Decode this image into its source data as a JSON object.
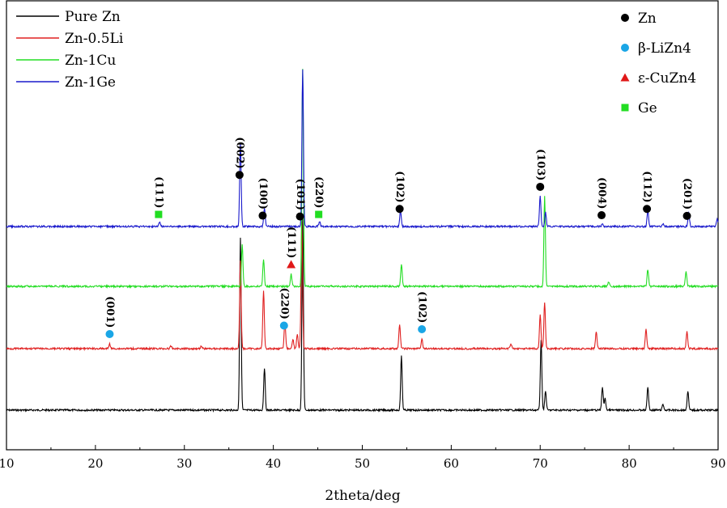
{
  "chart_data": {
    "type": "line",
    "title": "",
    "xlabel": "2theta/deg",
    "ylabel": "",
    "xlim": [
      10,
      90
    ],
    "xticks": [
      10,
      20,
      30,
      40,
      50,
      60,
      70,
      80,
      90
    ],
    "grid": false,
    "legend_position": "top-left",
    "series": [
      {
        "name": "Pure Zn",
        "color": "#000000",
        "peaks": [
          {
            "x": 36.3,
            "h": 0.9
          },
          {
            "x": 39.0,
            "h": 0.22
          },
          {
            "x": 43.3,
            "h": 1.0
          },
          {
            "x": 54.4,
            "h": 0.28
          },
          {
            "x": 70.1,
            "h": 0.36
          },
          {
            "x": 70.6,
            "h": 0.1
          },
          {
            "x": 77.0,
            "h": 0.12
          },
          {
            "x": 77.3,
            "h": 0.06
          },
          {
            "x": 82.1,
            "h": 0.12
          },
          {
            "x": 83.8,
            "h": 0.03
          },
          {
            "x": 86.6,
            "h": 0.1
          }
        ]
      },
      {
        "name": "Zn-0.5Li",
        "color": "#e02020",
        "peaks": [
          {
            "x": 21.6,
            "h": 0.02
          },
          {
            "x": 28.5,
            "h": 0.01
          },
          {
            "x": 31.9,
            "h": 0.01
          },
          {
            "x": 36.3,
            "h": 0.36
          },
          {
            "x": 38.9,
            "h": 0.24
          },
          {
            "x": 41.3,
            "h": 0.11
          },
          {
            "x": 42.2,
            "h": 0.04
          },
          {
            "x": 42.7,
            "h": 0.06
          },
          {
            "x": 43.2,
            "h": 0.52
          },
          {
            "x": 54.2,
            "h": 0.1
          },
          {
            "x": 56.7,
            "h": 0.04
          },
          {
            "x": 66.7,
            "h": 0.02
          },
          {
            "x": 70.0,
            "h": 0.14
          },
          {
            "x": 70.5,
            "h": 0.19
          },
          {
            "x": 76.3,
            "h": 0.07
          },
          {
            "x": 81.9,
            "h": 0.08
          },
          {
            "x": 86.5,
            "h": 0.07
          }
        ]
      },
      {
        "name": "Zn-1Cu",
        "color": "#22dd22",
        "peaks": [
          {
            "x": 36.5,
            "h": 0.17
          },
          {
            "x": 38.9,
            "h": 0.11
          },
          {
            "x": 42.0,
            "h": 0.05
          },
          {
            "x": 43.3,
            "h": 0.9
          },
          {
            "x": 54.4,
            "h": 0.09
          },
          {
            "x": 70.5,
            "h": 0.37
          },
          {
            "x": 77.7,
            "h": 0.02
          },
          {
            "x": 82.1,
            "h": 0.07
          },
          {
            "x": 86.4,
            "h": 0.06
          }
        ]
      },
      {
        "name": "Zn-1Ge",
        "color": "#1a1acc",
        "peaks": [
          {
            "x": 27.2,
            "h": 0.03
          },
          {
            "x": 36.3,
            "h": 0.53
          },
          {
            "x": 39.0,
            "h": 0.12
          },
          {
            "x": 43.3,
            "h": 1.0
          },
          {
            "x": 45.2,
            "h": 0.03
          },
          {
            "x": 54.3,
            "h": 0.1
          },
          {
            "x": 70.0,
            "h": 0.19
          },
          {
            "x": 70.6,
            "h": 0.09
          },
          {
            "x": 77.0,
            "h": 0.02
          },
          {
            "x": 82.1,
            "h": 0.1
          },
          {
            "x": 83.8,
            "h": 0.02
          },
          {
            "x": 86.7,
            "h": 0.09
          },
          {
            "x": 89.9,
            "h": 0.05
          }
        ]
      }
    ],
    "phase_legend": [
      {
        "label": "Zn",
        "marker": "circle",
        "color": "#000000"
      },
      {
        "label": "β-LiZn4",
        "marker": "circle",
        "color": "#1aa6e6"
      },
      {
        "label": "ε-CuZn4",
        "marker": "triangle",
        "color": "#e01818"
      },
      {
        "label": "Ge",
        "marker": "square",
        "color": "#22dd22"
      }
    ],
    "annotations": [
      {
        "text": "(002)",
        "x": 36.2,
        "series": 3,
        "marker": "circle",
        "color": "#000000"
      },
      {
        "text": "(101)",
        "x": 43.0,
        "series": 3,
        "marker": "circle",
        "color": "#000000"
      },
      {
        "text": "(100)",
        "x": 38.8,
        "series": 3,
        "marker": "circle",
        "color": "#000000"
      },
      {
        "text": "(102)",
        "x": 54.2,
        "series": 3,
        "marker": "circle",
        "color": "#000000"
      },
      {
        "text": "(103)",
        "x": 70.0,
        "series": 3,
        "marker": "circle",
        "color": "#000000"
      },
      {
        "text": "(004)",
        "x": 76.9,
        "series": 3,
        "marker": "circle",
        "color": "#000000"
      },
      {
        "text": "(112)",
        "x": 82.0,
        "series": 3,
        "marker": "circle",
        "color": "#000000"
      },
      {
        "text": "(201)",
        "x": 86.5,
        "series": 3,
        "marker": "circle",
        "color": "#000000"
      },
      {
        "text": "(111)",
        "x": 27.1,
        "series": 3,
        "marker": "square",
        "color": "#22dd22"
      },
      {
        "text": "(220)",
        "x": 45.1,
        "series": 3,
        "marker": "square",
        "color": "#22dd22"
      },
      {
        "text": "(111)",
        "x": 42.0,
        "series": 2,
        "marker": "triangle",
        "color": "#e01818"
      },
      {
        "text": "(001)",
        "x": 21.6,
        "series": 1,
        "marker": "circle",
        "color": "#1aa6e6"
      },
      {
        "text": "(220)",
        "x": 41.2,
        "series": 1,
        "marker": "circle",
        "color": "#1aa6e6"
      },
      {
        "text": "(102)",
        "x": 56.7,
        "series": 1,
        "marker": "circle",
        "color": "#1aa6e6"
      }
    ]
  }
}
